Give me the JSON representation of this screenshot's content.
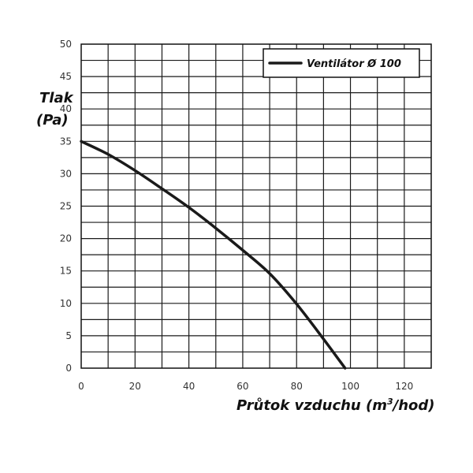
{
  "chart_data": {
    "type": "line",
    "xlabel_main": "Průtok vzduchu (m",
    "xlabel_sup": "3",
    "xlabel_tail": "/hod)",
    "ylabel_line1": "Tlak",
    "ylabel_line2": "(Pa)",
    "xlim": [
      0,
      130
    ],
    "ylim": [
      0,
      50
    ],
    "x_ticks": [
      "0",
      "20",
      "40",
      "60",
      "80",
      "100",
      "120"
    ],
    "y_ticks": [
      "0",
      "5",
      "10",
      "15",
      "20",
      "25",
      "30",
      "35",
      "40",
      "45",
      "50"
    ],
    "x_grid_step": 10,
    "y_grid_step": 2.5,
    "grid": true,
    "legend_position": "top-right",
    "series": [
      {
        "name": "Ventilátor Ø 100",
        "color": "#1a1a1a",
        "x": [
          0,
          10,
          20,
          30,
          40,
          50,
          60,
          70,
          80,
          90,
          98
        ],
        "y": [
          35,
          33,
          30.5,
          27.7,
          24.8,
          21.6,
          18.2,
          14.6,
          9.9,
          4.5,
          0
        ]
      }
    ]
  }
}
